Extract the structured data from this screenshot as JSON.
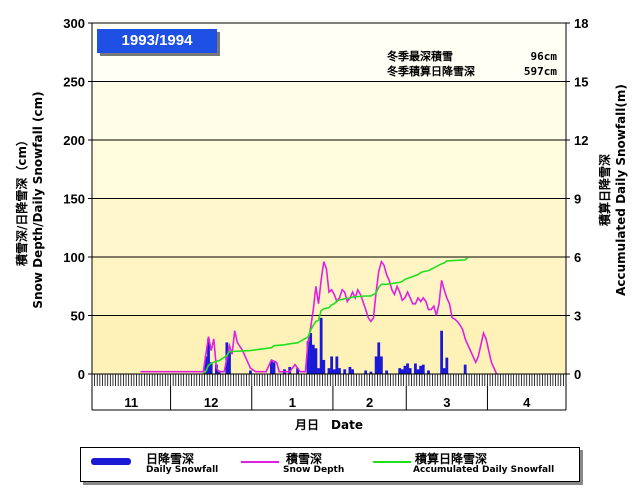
{
  "season_label": "1993/1994",
  "stats": {
    "max_depth_label": "冬季最深積雪",
    "max_depth_value": "96cm",
    "accum_label": "冬季積算日降雪深",
    "accum_value": "597cm"
  },
  "axes": {
    "left_title_jp": "積雪深/日降雪深（cm）",
    "left_title_en": "Snow Depth/Daily Snowfall (cm)",
    "right_title_jp": "積算日降雪深",
    "right_title_en": "Accumulated Daily Snowfall(m)",
    "x_title": "月日　Date"
  },
  "legend": [
    {
      "jp": "日降雪深",
      "en": "Daily Snowfall",
      "color": "#1a1ad6"
    },
    {
      "jp": "積雪深",
      "en": "Snow Depth",
      "color": "#e020e0"
    },
    {
      "jp": "積算日降雪深",
      "en": "Accumulated Daily Snowfall",
      "color": "#20e020"
    }
  ],
  "chart_data": {
    "type": "bar",
    "title": "1993/1994",
    "x_axis": {
      "months": [
        {
          "label": "11",
          "days": 30
        },
        {
          "label": "12",
          "days": 31
        },
        {
          "label": "1",
          "days": 31
        },
        {
          "label": "2",
          "days": 28
        },
        {
          "label": "3",
          "days": 31
        },
        {
          "label": "4",
          "days": 30
        }
      ]
    },
    "y_left": {
      "min": 0,
      "max": 300,
      "ticks": [
        0,
        50,
        100,
        150,
        200,
        250,
        300
      ],
      "unit": "cm"
    },
    "y_right": {
      "min": 0,
      "max": 18,
      "ticks": [
        0,
        3,
        6,
        9,
        12,
        15,
        18
      ],
      "unit": "m"
    },
    "series": [
      {
        "name": "Daily Snowfall",
        "type": "bar",
        "axis": "left",
        "color": "#1a1ad6",
        "points": [
          [
            43,
            15
          ],
          [
            44,
            30
          ],
          [
            45,
            10
          ],
          [
            47,
            8
          ],
          [
            48,
            3
          ],
          [
            51,
            27
          ],
          [
            52,
            20
          ],
          [
            60,
            3
          ],
          [
            68,
            11
          ],
          [
            69,
            10
          ],
          [
            73,
            4
          ],
          [
            75,
            6
          ],
          [
            78,
            5
          ],
          [
            82,
            28
          ],
          [
            83,
            35
          ],
          [
            84,
            25
          ],
          [
            85,
            22
          ],
          [
            86,
            5
          ],
          [
            87,
            48
          ],
          [
            88,
            12
          ],
          [
            90,
            5
          ],
          [
            91,
            15
          ],
          [
            92,
            4
          ],
          [
            93,
            15
          ],
          [
            94,
            5
          ],
          [
            96,
            4
          ],
          [
            98,
            6
          ],
          [
            99,
            4
          ],
          [
            104,
            3
          ],
          [
            106,
            2
          ],
          [
            108,
            15
          ],
          [
            109,
            27
          ],
          [
            110,
            15
          ],
          [
            112,
            3
          ],
          [
            117,
            5
          ],
          [
            118,
            4
          ],
          [
            119,
            7
          ],
          [
            120,
            9
          ],
          [
            121,
            5
          ],
          [
            123,
            9
          ],
          [
            124,
            4
          ],
          [
            125,
            7
          ],
          [
            126,
            8
          ],
          [
            128,
            3
          ],
          [
            133,
            37
          ],
          [
            134,
            5
          ],
          [
            135,
            14
          ],
          [
            142,
            8
          ]
        ]
      },
      {
        "name": "Snow Depth",
        "type": "line",
        "axis": "left",
        "color": "#e020e0",
        "points": [
          [
            18,
            2
          ],
          [
            42,
            2
          ],
          [
            44,
            32
          ],
          [
            45,
            20
          ],
          [
            46,
            30
          ],
          [
            47,
            5
          ],
          [
            48,
            2
          ],
          [
            50,
            2
          ],
          [
            52,
            24
          ],
          [
            53,
            17
          ],
          [
            54,
            37
          ],
          [
            55,
            27
          ],
          [
            57,
            20
          ],
          [
            60,
            5
          ],
          [
            62,
            2
          ],
          [
            66,
            2
          ],
          [
            68,
            12
          ],
          [
            70,
            10
          ],
          [
            71,
            2
          ],
          [
            75,
            2
          ],
          [
            77,
            8
          ],
          [
            79,
            2
          ],
          [
            81,
            2
          ],
          [
            82,
            27
          ],
          [
            83,
            40
          ],
          [
            84,
            55
          ],
          [
            85,
            75
          ],
          [
            86,
            60
          ],
          [
            87,
            80
          ],
          [
            88,
            96
          ],
          [
            89,
            90
          ],
          [
            90,
            70
          ],
          [
            91,
            72
          ],
          [
            92,
            68
          ],
          [
            93,
            62
          ],
          [
            94,
            65
          ],
          [
            95,
            72
          ],
          [
            96,
            70
          ],
          [
            97,
            62
          ],
          [
            98,
            65
          ],
          [
            99,
            70
          ],
          [
            100,
            65
          ],
          [
            101,
            72
          ],
          [
            102,
            68
          ],
          [
            103,
            62
          ],
          [
            104,
            55
          ],
          [
            105,
            48
          ],
          [
            106,
            45
          ],
          [
            107,
            48
          ],
          [
            108,
            70
          ],
          [
            109,
            88
          ],
          [
            110,
            96
          ],
          [
            111,
            93
          ],
          [
            112,
            85
          ],
          [
            113,
            80
          ],
          [
            114,
            72
          ],
          [
            115,
            68
          ],
          [
            116,
            75
          ],
          [
            117,
            70
          ],
          [
            118,
            63
          ],
          [
            119,
            65
          ],
          [
            120,
            70
          ],
          [
            121,
            65
          ],
          [
            122,
            60
          ],
          [
            123,
            60
          ],
          [
            124,
            65
          ],
          [
            125,
            62
          ],
          [
            126,
            65
          ],
          [
            127,
            62
          ],
          [
            128,
            55
          ],
          [
            129,
            55
          ],
          [
            130,
            58
          ],
          [
            131,
            50
          ],
          [
            132,
            60
          ],
          [
            133,
            80
          ],
          [
            134,
            72
          ],
          [
            135,
            65
          ],
          [
            136,
            60
          ],
          [
            137,
            48
          ],
          [
            138,
            47
          ],
          [
            139,
            45
          ],
          [
            140,
            42
          ],
          [
            141,
            38
          ],
          [
            142,
            30
          ],
          [
            143,
            25
          ],
          [
            144,
            20
          ],
          [
            145,
            15
          ],
          [
            146,
            10
          ],
          [
            147,
            15
          ],
          [
            148,
            25
          ],
          [
            149,
            35
          ],
          [
            150,
            30
          ],
          [
            151,
            20
          ],
          [
            152,
            10
          ],
          [
            153,
            5
          ],
          [
            154,
            0
          ]
        ]
      },
      {
        "name": "Accumulated Daily Snowfall",
        "type": "line",
        "axis": "right",
        "color": "#20e020",
        "points": [
          [
            42,
            0
          ],
          [
            43,
            0.15
          ],
          [
            44,
            0.45
          ],
          [
            45,
            0.55
          ],
          [
            47,
            0.65
          ],
          [
            48,
            0.68
          ],
          [
            51,
            0.95
          ],
          [
            52,
            1.15
          ],
          [
            60,
            1.2
          ],
          [
            68,
            1.35
          ],
          [
            69,
            1.45
          ],
          [
            73,
            1.5
          ],
          [
            75,
            1.55
          ],
          [
            78,
            1.6
          ],
          [
            82,
            1.9
          ],
          [
            83,
            2.25
          ],
          [
            84,
            2.5
          ],
          [
            85,
            2.7
          ],
          [
            86,
            2.75
          ],
          [
            87,
            3.25
          ],
          [
            88,
            3.35
          ],
          [
            90,
            3.4
          ],
          [
            91,
            3.55
          ],
          [
            92,
            3.6
          ],
          [
            93,
            3.75
          ],
          [
            94,
            3.8
          ],
          [
            96,
            3.85
          ],
          [
            98,
            3.9
          ],
          [
            99,
            3.95
          ],
          [
            104,
            4.0
          ],
          [
            106,
            4.0
          ],
          [
            108,
            4.15
          ],
          [
            109,
            4.45
          ],
          [
            110,
            4.6
          ],
          [
            112,
            4.6
          ],
          [
            117,
            4.7
          ],
          [
            118,
            4.75
          ],
          [
            119,
            4.85
          ],
          [
            120,
            4.9
          ],
          [
            121,
            4.95
          ],
          [
            123,
            5.05
          ],
          [
            124,
            5.1
          ],
          [
            125,
            5.2
          ],
          [
            126,
            5.25
          ],
          [
            128,
            5.3
          ],
          [
            133,
            5.65
          ],
          [
            134,
            5.7
          ],
          [
            135,
            5.8
          ],
          [
            142,
            5.85
          ],
          [
            143,
            5.97
          ]
        ]
      }
    ],
    "plot_background": {
      "bands_top_to_bottom": [
        "#fffff5",
        "#fffde8",
        "#fffbdd",
        "#fff8cf",
        "#fff5c4",
        "#fff2b8"
      ]
    }
  }
}
